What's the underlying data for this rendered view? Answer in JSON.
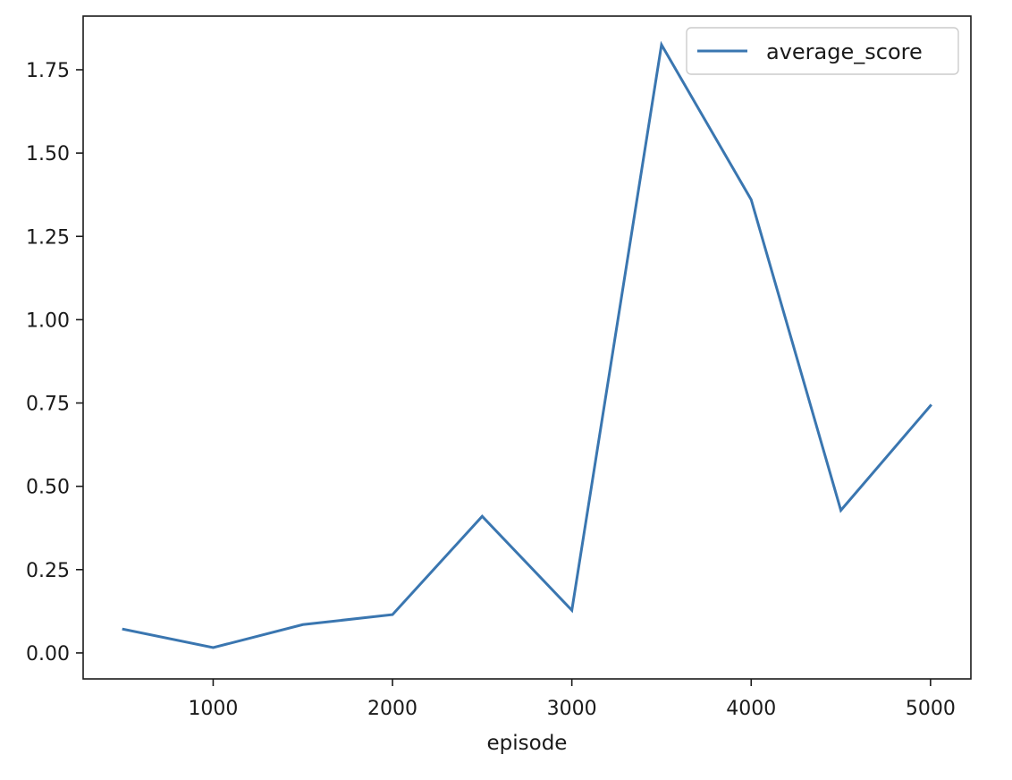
{
  "chart_data": {
    "type": "line",
    "title": "",
    "xlabel": "episode",
    "ylabel": "",
    "xlim": [
      275,
      5225
    ],
    "ylim": [
      -0.078,
      1.911
    ],
    "xticks": [
      1000,
      2000,
      3000,
      4000,
      5000
    ],
    "xtick_labels": [
      "1000",
      "2000",
      "3000",
      "4000",
      "5000"
    ],
    "yticks": [
      0.0,
      0.25,
      0.5,
      0.75,
      1.0,
      1.25,
      1.5,
      1.75
    ],
    "ytick_labels": [
      "0.00",
      "0.25",
      "0.50",
      "0.75",
      "1.00",
      "1.25",
      "1.50",
      "1.75"
    ],
    "grid": false,
    "legend_position": "upper right",
    "series": [
      {
        "name": "average_score",
        "color": "#3a76b0",
        "x": [
          500,
          1000,
          1500,
          2000,
          2500,
          3000,
          3500,
          4000,
          4500,
          5000
        ],
        "y": [
          0.071,
          0.016,
          0.085,
          0.115,
          0.41,
          0.128,
          1.825,
          1.36,
          0.428,
          0.742
        ]
      }
    ]
  }
}
